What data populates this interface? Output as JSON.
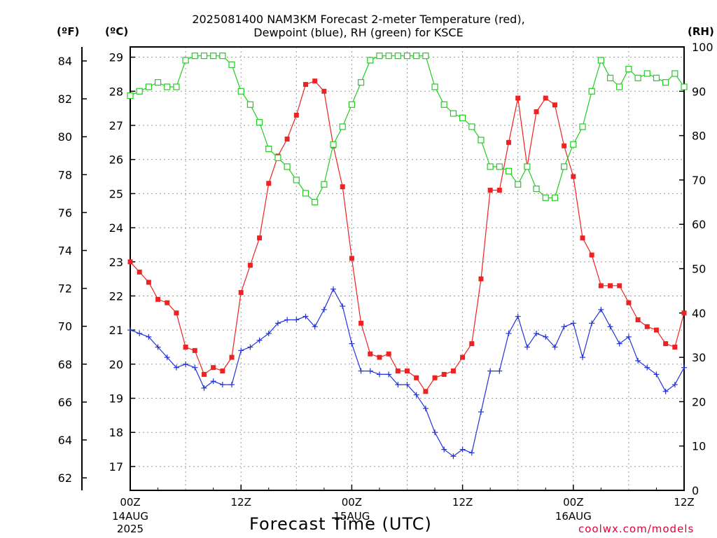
{
  "chart_data": {
    "type": "line",
    "title": "2025081400 NAM3KM Forecast 2-meter Temperature (red),",
    "subtitle": "Dewpoint (blue), RH (green) for KSCE",
    "xlabel": "Forecast Time (UTC)",
    "credit": "coolwx.com/models",
    "units": {
      "fahrenheit": "(ºF)",
      "celsius": "(ºC)",
      "rh": "(RH)"
    },
    "x_ticks": [
      {
        "label": "00Z",
        "date": "14AUG",
        "year": "2025"
      },
      {
        "label": "12Z",
        "date": "",
        "year": ""
      },
      {
        "label": "00Z",
        "date": "15AUG",
        "year": ""
      },
      {
        "label": "12Z",
        "date": "",
        "year": ""
      },
      {
        "label": "00Z",
        "date": "16AUG",
        "year": ""
      },
      {
        "label": "12Z",
        "date": "",
        "year": ""
      }
    ],
    "y_celsius": {
      "ylim": [
        16.3,
        29.3
      ],
      "ticks": [
        17,
        18,
        19,
        20,
        21,
        22,
        23,
        24,
        25,
        26,
        27,
        28,
        29
      ]
    },
    "y_fahrenheit": {
      "ticks": [
        62,
        64,
        66,
        68,
        70,
        72,
        74,
        76,
        78,
        80,
        82,
        84
      ]
    },
    "y_rh": {
      "ylim": [
        0,
        100
      ],
      "ticks": [
        0,
        10,
        20,
        30,
        40,
        50,
        60,
        70,
        80,
        90,
        100
      ]
    },
    "x_hours_range": [
      0,
      60
    ],
    "grid": true,
    "series": [
      {
        "name": "Temperature",
        "axis": "celsius",
        "color": "#ee2222",
        "marker": "filled-square",
        "x": [
          0,
          1,
          2,
          3,
          4,
          5,
          6,
          7,
          8,
          9,
          10,
          11,
          12,
          13,
          14,
          15,
          16,
          17,
          18,
          19,
          20,
          21,
          22,
          23,
          24,
          25,
          26,
          27,
          28,
          29,
          30,
          31,
          32,
          33,
          34,
          35,
          36,
          37,
          38,
          39,
          40,
          41,
          42,
          43,
          44,
          45,
          46,
          47,
          48,
          49,
          50,
          51,
          52,
          53,
          54,
          55,
          56,
          57,
          58,
          59,
          60
        ],
        "values": [
          23.0,
          22.7,
          22.4,
          21.9,
          21.8,
          21.5,
          20.5,
          20.4,
          19.7,
          19.9,
          19.8,
          20.2,
          22.1,
          22.9,
          23.7,
          25.3,
          26.1,
          26.6,
          27.3,
          28.2,
          28.3,
          28.0,
          26.4,
          25.2,
          23.1,
          21.2,
          20.3,
          20.2,
          20.3,
          19.8,
          19.8,
          19.6,
          19.2,
          19.6,
          19.7,
          19.8,
          20.2,
          20.6,
          22.5,
          25.1,
          25.1,
          26.5,
          27.8,
          25.8,
          27.4,
          27.8,
          27.6,
          26.4,
          25.5,
          23.7,
          23.2,
          22.3,
          22.3,
          22.3,
          21.8,
          21.3,
          21.1,
          21.0,
          20.6,
          20.5,
          21.5
        ]
      },
      {
        "name": "Dewpoint",
        "axis": "celsius",
        "color": "#2233dd",
        "marker": "plus",
        "x": [
          0,
          1,
          2,
          3,
          4,
          5,
          6,
          7,
          8,
          9,
          10,
          11,
          12,
          13,
          14,
          15,
          16,
          17,
          18,
          19,
          20,
          21,
          22,
          23,
          24,
          25,
          26,
          27,
          28,
          29,
          30,
          31,
          32,
          33,
          34,
          35,
          36,
          37,
          38,
          39,
          40,
          41,
          42,
          43,
          44,
          45,
          46,
          47,
          48,
          49,
          50,
          51,
          52,
          53,
          54,
          55,
          56,
          57,
          58,
          59,
          60
        ],
        "values": [
          21.0,
          20.9,
          20.8,
          20.5,
          20.2,
          19.9,
          20.0,
          19.9,
          19.3,
          19.5,
          19.4,
          19.4,
          20.4,
          20.5,
          20.7,
          20.9,
          21.2,
          21.3,
          21.3,
          21.4,
          21.1,
          21.6,
          22.2,
          21.7,
          20.6,
          19.8,
          19.8,
          19.7,
          19.7,
          19.4,
          19.4,
          19.1,
          18.7,
          18.0,
          17.5,
          17.3,
          17.5,
          17.4,
          18.6,
          19.8,
          19.8,
          20.9,
          21.4,
          20.5,
          20.9,
          20.8,
          20.5,
          21.1,
          21.2,
          20.2,
          21.2,
          21.6,
          21.1,
          20.6,
          20.8,
          20.1,
          19.9,
          19.7,
          19.2,
          19.4,
          19.9
        ]
      },
      {
        "name": "RH",
        "axis": "rh",
        "color": "#22cc22",
        "marker": "open-square",
        "x": [
          0,
          1,
          2,
          3,
          4,
          5,
          6,
          7,
          8,
          9,
          10,
          11,
          12,
          13,
          14,
          15,
          16,
          17,
          18,
          19,
          20,
          21,
          22,
          23,
          24,
          25,
          26,
          27,
          28,
          29,
          30,
          31,
          32,
          33,
          34,
          35,
          36,
          37,
          38,
          39,
          40,
          41,
          42,
          43,
          44,
          45,
          46,
          47,
          48,
          49,
          50,
          51,
          52,
          53,
          54,
          55,
          56,
          57,
          58,
          59,
          60
        ],
        "values": [
          89,
          90,
          91,
          92,
          91,
          91,
          97,
          98,
          98,
          98,
          98,
          96,
          90,
          87,
          83,
          77,
          75,
          73,
          70,
          67,
          65,
          69,
          78,
          82,
          87,
          92,
          97,
          98,
          98,
          98,
          98,
          98,
          98,
          91,
          87,
          85,
          84,
          82,
          79,
          73,
          73,
          72,
          69,
          73,
          68,
          66,
          66,
          73,
          78,
          82,
          90,
          97,
          93,
          91,
          95,
          93,
          94,
          93,
          92,
          94,
          91
        ]
      }
    ]
  }
}
